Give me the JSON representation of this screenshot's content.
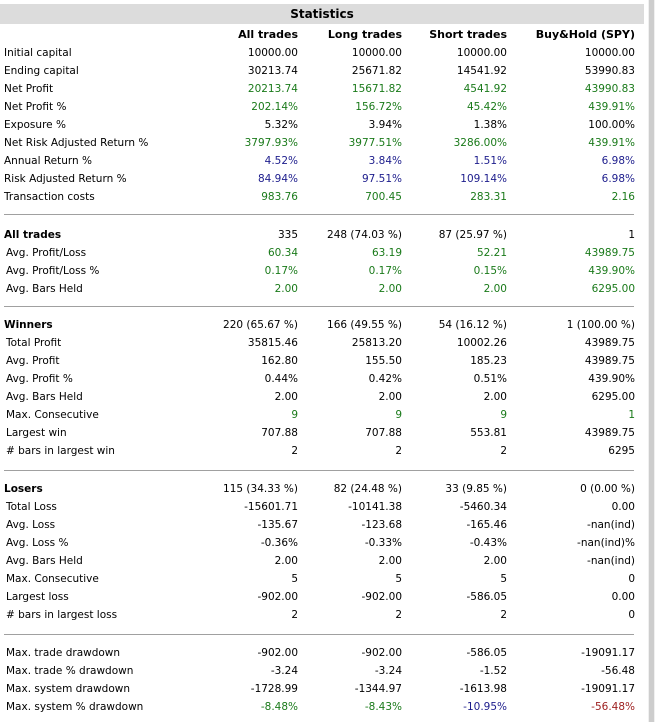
{
  "title": "Statistics",
  "columns": [
    "All trades",
    "Long trades",
    "Short trades",
    "Buy&Hold (SPY)"
  ],
  "colors": {
    "green": "#1a7a1a",
    "blue": "#1c1c8c",
    "red": "#9c1c1c",
    "black": "#000000"
  },
  "sections": [
    {
      "rows": [
        {
          "label": "Initial capital",
          "values": [
            "10000.00",
            "10000.00",
            "10000.00",
            "10000.00"
          ],
          "colors": [
            "black",
            "black",
            "black",
            "black"
          ]
        },
        {
          "label": "Ending capital",
          "values": [
            "30213.74",
            "25671.82",
            "14541.92",
            "53990.83"
          ],
          "colors": [
            "black",
            "black",
            "black",
            "black"
          ]
        },
        {
          "label": "Net Profit",
          "values": [
            "20213.74",
            "15671.82",
            "4541.92",
            "43990.83"
          ],
          "colors": [
            "green",
            "green",
            "green",
            "green"
          ]
        },
        {
          "label": "Net Profit %",
          "values": [
            "202.14%",
            "156.72%",
            "45.42%",
            "439.91%"
          ],
          "colors": [
            "green",
            "green",
            "green",
            "green"
          ]
        },
        {
          "label": "Exposure %",
          "values": [
            "5.32%",
            "3.94%",
            "1.38%",
            "100.00%"
          ],
          "colors": [
            "black",
            "black",
            "black",
            "black"
          ]
        },
        {
          "label": "Net Risk Adjusted Return %",
          "values": [
            "3797.93%",
            "3977.51%",
            "3286.00%",
            "439.91%"
          ],
          "colors": [
            "green",
            "green",
            "green",
            "green"
          ]
        },
        {
          "label": "Annual Return %",
          "values": [
            "4.52%",
            "3.84%",
            "1.51%",
            "6.98%"
          ],
          "colors": [
            "blue",
            "blue",
            "blue",
            "blue"
          ]
        },
        {
          "label": "Risk Adjusted Return %",
          "values": [
            "84.94%",
            "97.51%",
            "109.14%",
            "6.98%"
          ],
          "colors": [
            "blue",
            "blue",
            "blue",
            "blue"
          ]
        },
        {
          "label": "Transaction costs",
          "values": [
            "983.76",
            "700.45",
            "283.31",
            "2.16"
          ],
          "colors": [
            "green",
            "green",
            "green",
            "green"
          ]
        }
      ]
    },
    {
      "rows": [
        {
          "label": "All trades",
          "bold": true,
          "values": [
            "335",
            "248 (74.03 %)",
            "87 (25.97 %)",
            "1"
          ],
          "colors": [
            "black",
            "black",
            "black",
            "black"
          ]
        },
        {
          "label": "Avg. Profit/Loss",
          "values": [
            "60.34",
            "63.19",
            "52.21",
            "43989.75"
          ],
          "colors": [
            "green",
            "green",
            "green",
            "green"
          ]
        },
        {
          "label": "Avg. Profit/Loss %",
          "values": [
            "0.17%",
            "0.17%",
            "0.15%",
            "439.90%"
          ],
          "colors": [
            "green",
            "green",
            "green",
            "green"
          ]
        },
        {
          "label": "Avg. Bars Held",
          "values": [
            "2.00",
            "2.00",
            "2.00",
            "6295.00"
          ],
          "colors": [
            "green",
            "green",
            "green",
            "green"
          ]
        }
      ]
    },
    {
      "rows": [
        {
          "label": "Winners",
          "bold": true,
          "values": [
            "220 (65.67 %)",
            "166 (49.55 %)",
            "54 (16.12 %)",
            "1 (100.00 %)"
          ],
          "colors": [
            "black",
            "black",
            "black",
            "black"
          ]
        },
        {
          "label": "Total Profit",
          "values": [
            "35815.46",
            "25813.20",
            "10002.26",
            "43989.75"
          ],
          "colors": [
            "black",
            "black",
            "black",
            "black"
          ]
        },
        {
          "label": "Avg. Profit",
          "values": [
            "162.80",
            "155.50",
            "185.23",
            "43989.75"
          ],
          "colors": [
            "black",
            "black",
            "black",
            "black"
          ]
        },
        {
          "label": "Avg. Profit %",
          "values": [
            "0.44%",
            "0.42%",
            "0.51%",
            "439.90%"
          ],
          "colors": [
            "black",
            "black",
            "black",
            "black"
          ]
        },
        {
          "label": "Avg. Bars Held",
          "values": [
            "2.00",
            "2.00",
            "2.00",
            "6295.00"
          ],
          "colors": [
            "black",
            "black",
            "black",
            "black"
          ]
        },
        {
          "label": "Max. Consecutive",
          "values": [
            "9",
            "9",
            "9",
            "1"
          ],
          "colors": [
            "green",
            "green",
            "green",
            "green"
          ]
        },
        {
          "label": "Largest win",
          "values": [
            "707.88",
            "707.88",
            "553.81",
            "43989.75"
          ],
          "colors": [
            "black",
            "black",
            "black",
            "black"
          ]
        },
        {
          "label": "# bars in largest win",
          "values": [
            "2",
            "2",
            "2",
            "6295"
          ],
          "colors": [
            "black",
            "black",
            "black",
            "black"
          ]
        }
      ]
    },
    {
      "rows": [
        {
          "label": "Losers",
          "bold": true,
          "values": [
            "115 (34.33 %)",
            "82 (24.48 %)",
            "33 (9.85 %)",
            "0 (0.00 %)"
          ],
          "colors": [
            "black",
            "black",
            "black",
            "black"
          ]
        },
        {
          "label": "Total Loss",
          "values": [
            "-15601.71",
            "-10141.38",
            "-5460.34",
            "0.00"
          ],
          "colors": [
            "black",
            "black",
            "black",
            "black"
          ]
        },
        {
          "label": "Avg. Loss",
          "values": [
            "-135.67",
            "-123.68",
            "-165.46",
            "-nan(ind)"
          ],
          "colors": [
            "black",
            "black",
            "black",
            "black"
          ]
        },
        {
          "label": "Avg. Loss %",
          "values": [
            "-0.36%",
            "-0.33%",
            "-0.43%",
            "-nan(ind)%"
          ],
          "colors": [
            "black",
            "black",
            "black",
            "black"
          ]
        },
        {
          "label": "Avg. Bars Held",
          "values": [
            "2.00",
            "2.00",
            "2.00",
            "-nan(ind)"
          ],
          "colors": [
            "black",
            "black",
            "black",
            "black"
          ]
        },
        {
          "label": "Max. Consecutive",
          "values": [
            "5",
            "5",
            "5",
            "0"
          ],
          "colors": [
            "black",
            "black",
            "black",
            "black"
          ]
        },
        {
          "label": "Largest loss",
          "values": [
            "-902.00",
            "-902.00",
            "-586.05",
            "0.00"
          ],
          "colors": [
            "black",
            "black",
            "black",
            "black"
          ]
        },
        {
          "label": "# bars in largest loss",
          "values": [
            "2",
            "2",
            "2",
            "0"
          ],
          "colors": [
            "black",
            "black",
            "black",
            "black"
          ]
        }
      ]
    },
    {
      "rows": [
        {
          "label": "Max. trade drawdown",
          "values": [
            "-902.00",
            "-902.00",
            "-586.05",
            "-19091.17"
          ],
          "colors": [
            "black",
            "black",
            "black",
            "black"
          ]
        },
        {
          "label": "Max. trade % drawdown",
          "values": [
            "-3.24",
            "-3.24",
            "-1.52",
            "-56.48"
          ],
          "colors": [
            "black",
            "black",
            "black",
            "black"
          ]
        },
        {
          "label": "Max. system drawdown",
          "values": [
            "-1728.99",
            "-1344.97",
            "-1613.98",
            "-19091.17"
          ],
          "colors": [
            "black",
            "black",
            "black",
            "black"
          ]
        },
        {
          "label": "Max. system % drawdown",
          "values": [
            "-8.48%",
            "-8.43%",
            "-10.95%",
            "-56.48%"
          ],
          "colors": [
            "green",
            "green",
            "blue",
            "red"
          ]
        }
      ]
    }
  ]
}
